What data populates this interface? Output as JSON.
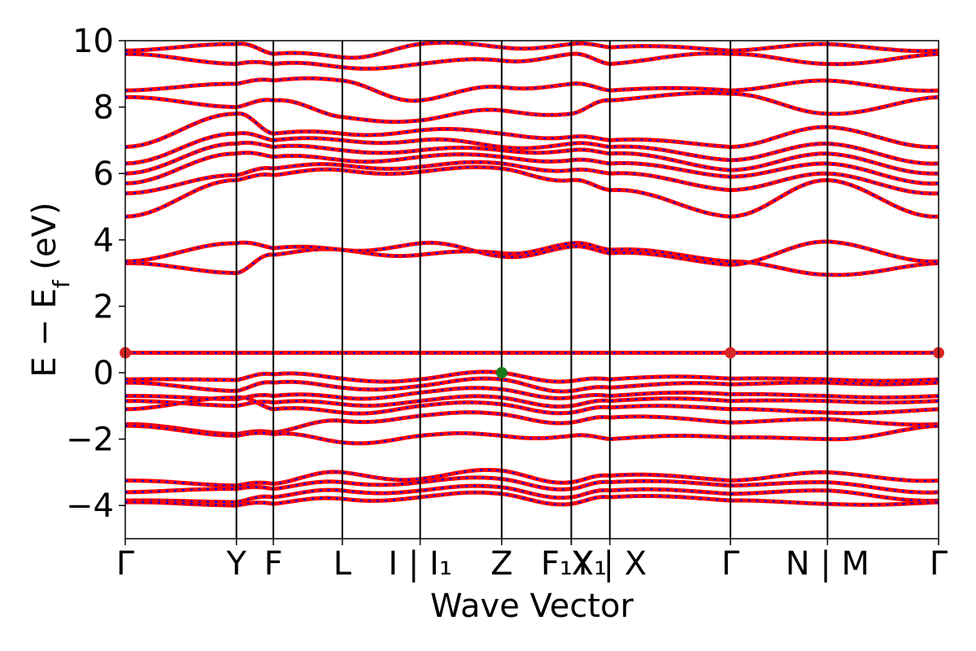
{
  "chart_data": {
    "type": "line",
    "title": "",
    "xlabel": "Wave Vector",
    "ylabel": "E − E_f (eV)",
    "ylabel_parts": {
      "base": "E − E",
      "sub": "f",
      "suffix": " (eV)"
    },
    "ylim": [
      -5,
      10
    ],
    "yticks": [
      -4,
      -2,
      0,
      2,
      4,
      6,
      8,
      10
    ],
    "ytick_labels": [
      "−4",
      "−2",
      "0",
      "2",
      "4",
      "6",
      "8",
      "10"
    ],
    "grid": false,
    "legend": "none",
    "kpath_ticks": [
      {
        "x": 0.0,
        "label": "Γ"
      },
      {
        "x": 1.367,
        "label": "Y"
      },
      {
        "x": 1.821,
        "label": "F"
      },
      {
        "x": 2.669,
        "label": "L"
      },
      {
        "x": 3.626,
        "label": "I | I₁"
      },
      {
        "x": 4.628,
        "label": "Z"
      },
      {
        "x": 5.484,
        "label": "F₁"
      },
      {
        "x": 5.484,
        "label": "X₁"
      },
      {
        "x": 5.958,
        "label": "Y | X"
      },
      {
        "x": 7.441,
        "label": "Γ"
      },
      {
        "x": 8.634,
        "label": "N | M"
      },
      {
        "x": 10.0,
        "label": "Γ"
      }
    ],
    "xlim": [
      0,
      10
    ],
    "series_colors": {
      "spin_a": "#ff0000",
      "spin_b": "#0000ff"
    },
    "bands_valence": [
      [
        -0.2,
        -0.22,
        -0.05,
        -0.18,
        -0.2,
        0.0,
        -0.25,
        -0.2,
        -0.18,
        -0.2,
        -0.2
      ],
      [
        -0.3,
        -0.55,
        -0.3,
        -0.45,
        -0.4,
        -0.2,
        -0.55,
        -0.45,
        -0.35,
        -0.3,
        -0.3
      ],
      [
        -0.7,
        -0.8,
        -0.7,
        -0.75,
        -0.6,
        -0.5,
        -0.75,
        -0.7,
        -0.65,
        -0.7,
        -0.7
      ],
      [
        -0.85,
        -1.0,
        -0.9,
        -0.95,
        -0.85,
        -0.75,
        -1.0,
        -0.85,
        -0.85,
        -0.85,
        -0.85
      ],
      [
        -1.1,
        -0.75,
        -1.1,
        -1.2,
        -1.0,
        -0.95,
        -1.2,
        -1.05,
        -1.1,
        -1.2,
        -1.1
      ],
      [
        -1.55,
        -1.85,
        -1.8,
        -1.45,
        -1.3,
        -1.25,
        -1.5,
        -1.35,
        -1.5,
        -1.4,
        -1.55
      ],
      [
        -1.6,
        -1.9,
        -1.85,
        -2.1,
        -1.9,
        -1.9,
        -1.9,
        -2.0,
        -1.95,
        -2.0,
        -1.6
      ],
      [
        -3.25,
        -3.4,
        -3.35,
        -3.0,
        -3.2,
        -2.95,
        -3.3,
        -3.1,
        -3.25,
        -3.0,
        -3.25
      ],
      [
        -3.6,
        -3.5,
        -3.5,
        -3.3,
        -3.3,
        -3.2,
        -3.5,
        -3.3,
        -3.4,
        -3.3,
        -3.6
      ],
      [
        -3.85,
        -3.9,
        -3.75,
        -3.55,
        -3.55,
        -3.45,
        -3.75,
        -3.55,
        -3.65,
        -3.55,
        -3.85
      ],
      [
        -3.9,
        -4.0,
        -3.95,
        -3.8,
        -3.75,
        -3.65,
        -3.95,
        -3.75,
        -3.85,
        -3.95,
        -3.9
      ]
    ],
    "flat_band": {
      "y": 0.6
    },
    "bands_conduction": [
      [
        3.3,
        3.0,
        3.55,
        3.7,
        3.55,
        3.6,
        3.9,
        3.7,
        3.35,
        2.95,
        3.3
      ],
      [
        3.35,
        3.9,
        3.75,
        3.7,
        3.9,
        3.5,
        3.8,
        3.6,
        3.25,
        3.95,
        3.35
      ],
      [
        4.7,
        5.8,
        5.95,
        6.1,
        6.05,
        6.15,
        5.8,
        5.5,
        4.7,
        5.8,
        4.7
      ],
      [
        5.4,
        5.95,
        6.15,
        6.25,
        6.2,
        6.3,
        6.1,
        6.0,
        5.5,
        6.0,
        5.4
      ],
      [
        5.7,
        6.6,
        6.5,
        6.4,
        6.5,
        6.5,
        6.4,
        6.3,
        5.9,
        6.3,
        5.7
      ],
      [
        6.0,
        6.9,
        6.8,
        6.7,
        6.7,
        6.7,
        6.7,
        6.6,
        6.1,
        6.6,
        6.0
      ],
      [
        6.3,
        7.2,
        7.0,
        7.0,
        7.0,
        6.8,
        6.9,
        6.8,
        6.4,
        6.9,
        6.3
      ],
      [
        6.8,
        7.8,
        7.2,
        7.2,
        7.3,
        7.2,
        7.1,
        7.0,
        6.8,
        7.4,
        6.8
      ],
      [
        8.3,
        8.0,
        8.2,
        7.7,
        7.6,
        7.9,
        7.8,
        8.2,
        8.4,
        7.8,
        8.3
      ],
      [
        8.5,
        8.7,
        8.8,
        8.8,
        8.2,
        8.6,
        8.7,
        8.5,
        8.5,
        8.8,
        8.5
      ],
      [
        9.6,
        9.3,
        9.3,
        9.2,
        9.3,
        9.4,
        9.6,
        9.3,
        9.6,
        9.3,
        9.6
      ],
      [
        9.7,
        9.9,
        9.6,
        9.5,
        9.9,
        9.8,
        9.9,
        9.8,
        9.7,
        9.9,
        9.7
      ]
    ],
    "markers": [
      {
        "x": 0.0,
        "y": 0.6,
        "color": "#d62728",
        "name": "red-marker"
      },
      {
        "x": 7.441,
        "y": 0.6,
        "color": "#d62728",
        "name": "red-marker"
      },
      {
        "x": 10.0,
        "y": 0.6,
        "color": "#d62728",
        "name": "red-marker"
      },
      {
        "x": 4.628,
        "y": 0.0,
        "color": "#1a7a1a",
        "name": "green-marker"
      }
    ]
  }
}
